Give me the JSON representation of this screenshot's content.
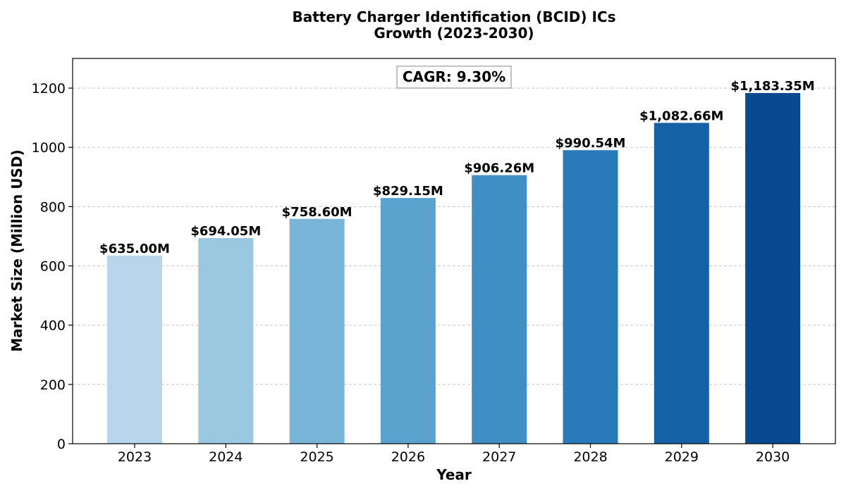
{
  "chart_data": {
    "type": "bar",
    "title_line1": "Battery Charger Identification (BCID) ICs",
    "title_line2": "Growth (2023-2030)",
    "xlabel": "Year",
    "ylabel": "Market Size (Million USD)",
    "categories": [
      "2023",
      "2024",
      "2025",
      "2026",
      "2027",
      "2028",
      "2029",
      "2030"
    ],
    "values": [
      635.0,
      694.05,
      758.6,
      829.15,
      906.26,
      990.54,
      1082.66,
      1183.35
    ],
    "data_labels": [
      "$635.00M",
      "$694.05M",
      "$758.60M",
      "$829.15M",
      "$906.26M",
      "$990.54M",
      "$1,082.66M",
      "$1,183.35M"
    ],
    "colors": [
      "#b9d5ea",
      "#9ac8e0",
      "#79b5d9",
      "#5ba3cf",
      "#3f8fc5",
      "#2a7ab9",
      "#1461a8",
      "#084a91"
    ],
    "ylim": [
      0,
      1300
    ],
    "yticks": [
      0,
      200,
      400,
      600,
      800,
      1000,
      1200
    ],
    "grid": "horizontal dashed",
    "annotation": "CAGR: 9.30%"
  }
}
